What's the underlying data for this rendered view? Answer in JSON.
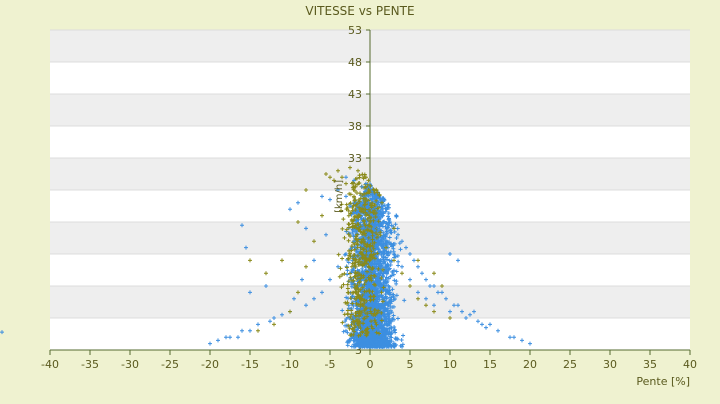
{
  "chart_data": {
    "type": "scatter",
    "title": "VITESSE vs PENTE",
    "xlabel": "Pente [%]",
    "ylabel": "[km/h]",
    "xlim": [
      -40,
      40
    ],
    "ylim": [
      3,
      53
    ],
    "x_ticks": [
      "-40",
      "-35",
      "-30",
      "-25",
      "-20",
      "-15",
      "-10",
      "-5",
      "0",
      "5",
      "10",
      "15",
      "20",
      "25",
      "30",
      "35",
      "40"
    ],
    "y_ticks": [
      "3",
      "8",
      "13",
      "18",
      "23",
      "28",
      "33",
      "38",
      "43",
      "48",
      "53"
    ],
    "y_tick_labels_visible": [
      "33",
      "38",
      "43",
      "48",
      "53"
    ],
    "grid": "horizontal alternating bands",
    "legend": "none",
    "colors": {
      "background": "#eff2d0",
      "band_light": "#ffffff",
      "band_dark": "#eeeeee",
      "axis_line": "#556b2f",
      "text": "#5a5a1e",
      "series_primary": "#3d8fe0",
      "series_secondary": "#8a8a1a"
    },
    "series": [
      {
        "color": "#3d8fe0",
        "marker": "plus",
        "description": "dense cloud",
        "points": [
          [
            -0.5,
            29
          ],
          [
            -0.2,
            26
          ],
          [
            0.3,
            24
          ],
          [
            1,
            22
          ],
          [
            2,
            20
          ],
          [
            3,
            18
          ],
          [
            4,
            16
          ],
          [
            5,
            14
          ],
          [
            6,
            12
          ],
          [
            7,
            11
          ],
          [
            8,
            10
          ],
          [
            10,
            9
          ],
          [
            12,
            8
          ],
          [
            14,
            7
          ],
          [
            16,
            6
          ],
          [
            17.5,
            5
          ],
          [
            19,
            4.5
          ],
          [
            -1,
            22
          ],
          [
            -2,
            20
          ],
          [
            -3,
            18
          ],
          [
            -4,
            16
          ],
          [
            -5,
            14
          ],
          [
            -6,
            12
          ],
          [
            -7,
            11
          ],
          [
            -8,
            10
          ],
          [
            -10,
            9
          ],
          [
            -12,
            8
          ],
          [
            -14,
            7
          ],
          [
            -16,
            6
          ],
          [
            -17.5,
            5
          ],
          [
            -19,
            4.5
          ],
          [
            0,
            20
          ],
          [
            0,
            15
          ],
          [
            0,
            10
          ],
          [
            0,
            6
          ],
          [
            1,
            12
          ],
          [
            2,
            8
          ],
          [
            3,
            6
          ],
          [
            -1,
            12
          ],
          [
            -2,
            8
          ],
          [
            -3,
            6
          ],
          [
            -3,
            27
          ],
          [
            -2.5,
            25.5
          ],
          [
            -2,
            24.5
          ],
          [
            -5.5,
            21
          ],
          [
            -7,
            17
          ],
          [
            -8.5,
            14
          ],
          [
            -9.5,
            11
          ],
          [
            -11,
            8.5
          ],
          [
            -12.5,
            7.5
          ],
          [
            -15,
            6
          ],
          [
            -16.5,
            5
          ],
          [
            10,
            18
          ],
          [
            11,
            17
          ],
          [
            5,
            18
          ],
          [
            4,
            20
          ],
          [
            6,
            16
          ],
          [
            7,
            14
          ],
          [
            8,
            13
          ],
          [
            9,
            12
          ],
          [
            11,
            10
          ],
          [
            13,
            9
          ],
          [
            15,
            7
          ],
          [
            18,
            5
          ],
          [
            20,
            4
          ],
          [
            -20,
            4
          ],
          [
            -18,
            5
          ],
          [
            -15.5,
            19
          ],
          [
            -16,
            22.5
          ],
          [
            -15,
            12
          ],
          [
            -13,
            13
          ],
          [
            -10,
            25
          ],
          [
            -9,
            26
          ],
          [
            -8,
            22
          ],
          [
            -6,
            27
          ],
          [
            -5,
            26.5
          ],
          [
            -4,
            28
          ],
          [
            -3,
            30
          ],
          [
            -2,
            29.5
          ],
          [
            -1,
            28.5
          ],
          [
            0.5,
            27
          ],
          [
            1.5,
            25
          ],
          [
            2.5,
            23
          ],
          [
            3.5,
            21
          ],
          [
            4.5,
            19
          ],
          [
            5.5,
            17
          ],
          [
            6.5,
            15
          ],
          [
            7.5,
            13
          ],
          [
            8.5,
            12
          ],
          [
            9.5,
            11
          ],
          [
            10.5,
            10
          ],
          [
            11.5,
            9
          ],
          [
            12.5,
            8.5
          ],
          [
            13.5,
            7.5
          ],
          [
            14.5,
            6.5
          ]
        ]
      },
      {
        "color": "#8a8a1a",
        "marker": "plus",
        "description": "sparse overlay",
        "points": [
          [
            -5,
            30
          ],
          [
            -4,
            31
          ],
          [
            -3,
            29
          ],
          [
            -2,
            27
          ],
          [
            -1,
            25
          ],
          [
            0,
            23
          ],
          [
            1,
            21
          ],
          [
            2,
            19
          ],
          [
            3,
            17
          ],
          [
            4,
            15
          ],
          [
            5,
            13
          ],
          [
            6,
            11
          ],
          [
            7,
            10
          ],
          [
            8,
            9
          ],
          [
            10,
            8
          ],
          [
            -6,
            24
          ],
          [
            -7,
            20
          ],
          [
            -8,
            16
          ],
          [
            -9,
            12
          ],
          [
            -10,
            9
          ],
          [
            -12,
            7
          ],
          [
            -14,
            6
          ],
          [
            -15,
            17
          ],
          [
            -13,
            15
          ],
          [
            -11,
            17
          ],
          [
            -9,
            23
          ],
          [
            -8,
            28
          ],
          [
            -5.5,
            30.5
          ],
          [
            -4.5,
            29.5
          ],
          [
            9,
            13
          ],
          [
            8,
            15
          ],
          [
            6,
            17
          ],
          [
            3,
            22
          ],
          [
            1.5,
            26
          ],
          [
            0.5,
            28
          ],
          [
            -0.5,
            30
          ],
          [
            -1.5,
            31
          ],
          [
            -2.5,
            31.5
          ],
          [
            -3.5,
            30
          ]
        ]
      }
    ],
    "left_edge_marker": {
      "x": -46,
      "y": 5.8
    }
  }
}
